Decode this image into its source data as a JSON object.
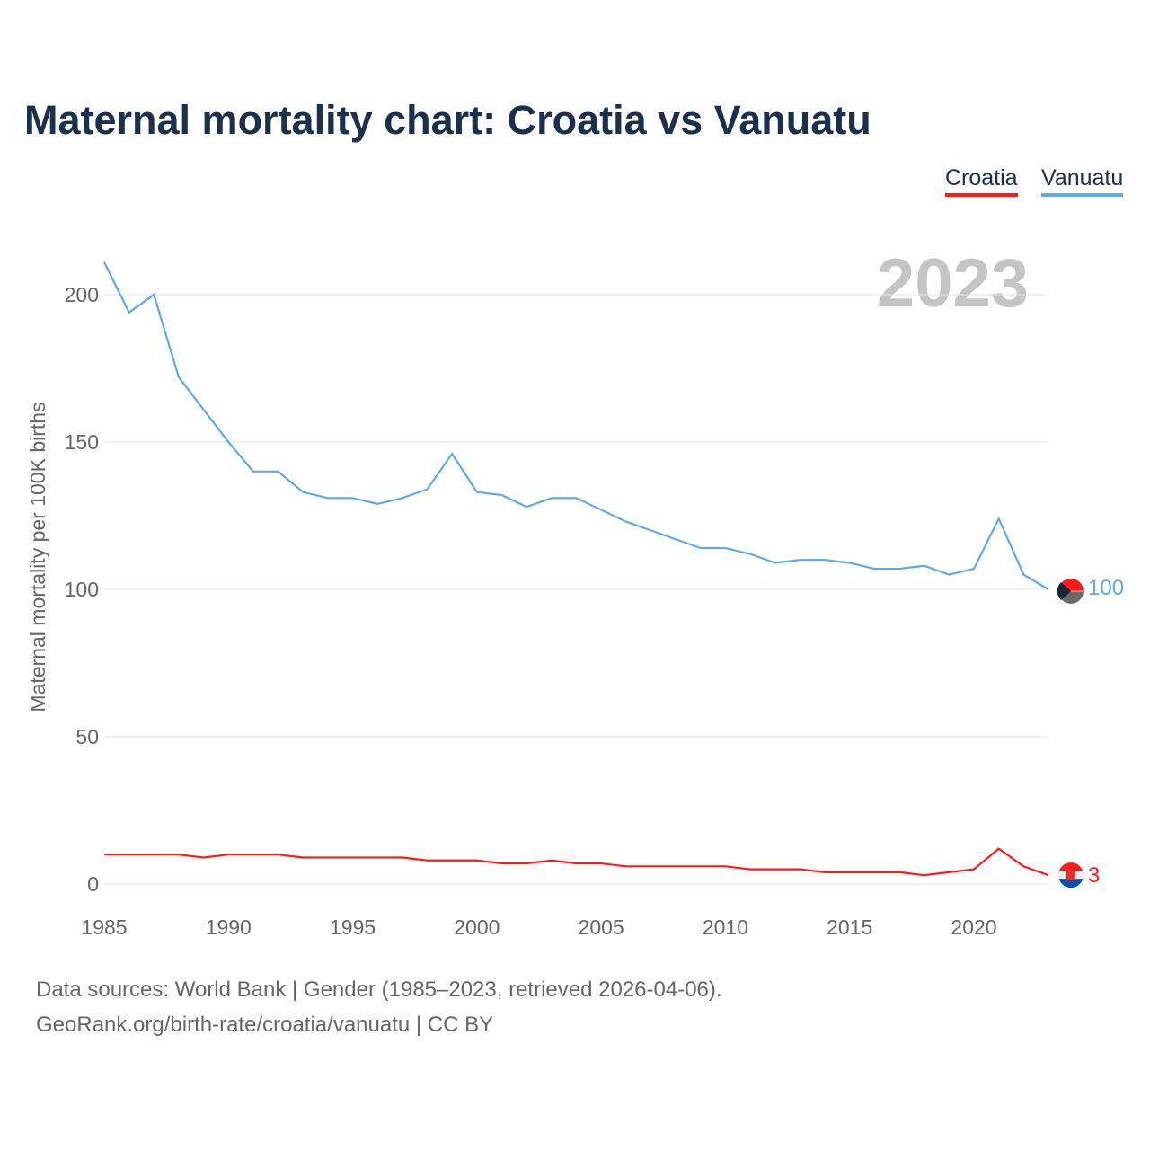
{
  "chart_data": {
    "type": "line",
    "title": "Maternal mortality chart: Croatia vs Vanuatu",
    "ylabel": "Maternal mortality per 100K births",
    "xlabel": "",
    "year_label": "2023",
    "xlim": [
      1985,
      2023
    ],
    "ylim": [
      0,
      200
    ],
    "x_ticks": [
      1985,
      1990,
      1995,
      2000,
      2005,
      2010,
      2015,
      2020
    ],
    "y_ticks": [
      0,
      50,
      100,
      150,
      200
    ],
    "grid": true,
    "legend_position": "top-right",
    "x": [
      1985,
      1986,
      1987,
      1988,
      1989,
      1990,
      1991,
      1992,
      1993,
      1994,
      1995,
      1996,
      1997,
      1998,
      1999,
      2000,
      2001,
      2002,
      2003,
      2004,
      2005,
      2006,
      2007,
      2008,
      2009,
      2010,
      2011,
      2012,
      2013,
      2014,
      2015,
      2016,
      2017,
      2018,
      2019,
      2020,
      2021,
      2022,
      2023
    ],
    "series": [
      {
        "name": "Croatia",
        "color": "#ff1a1a",
        "end_label": "3",
        "flag": "croatia-flag",
        "values": [
          10,
          10,
          10,
          10,
          9,
          10,
          10,
          10,
          9,
          9,
          9,
          9,
          9,
          8,
          8,
          8,
          7,
          7,
          8,
          7,
          7,
          6,
          6,
          6,
          6,
          6,
          5,
          5,
          5,
          4,
          4,
          4,
          4,
          3,
          4,
          5,
          12,
          6,
          3
        ]
      },
      {
        "name": "Vanuatu",
        "color": "#5fa8ec",
        "end_label": "100",
        "flag": "vanuatu-flag",
        "values": [
          211,
          194,
          200,
          172,
          161,
          150,
          140,
          140,
          133,
          131,
          131,
          129,
          131,
          134,
          146,
          133,
          132,
          128,
          131,
          131,
          127,
          123,
          120,
          117,
          114,
          114,
          112,
          109,
          110,
          110,
          109,
          107,
          107,
          108,
          105,
          107,
          124,
          105,
          100
        ]
      }
    ]
  },
  "footer": {
    "line1": "Data sources: World Bank | Gender (1985–2023, retrieved 2026-04-06).",
    "line2": "GeoRank.org/birth-rate/croatia/vanuatu | CC BY"
  }
}
